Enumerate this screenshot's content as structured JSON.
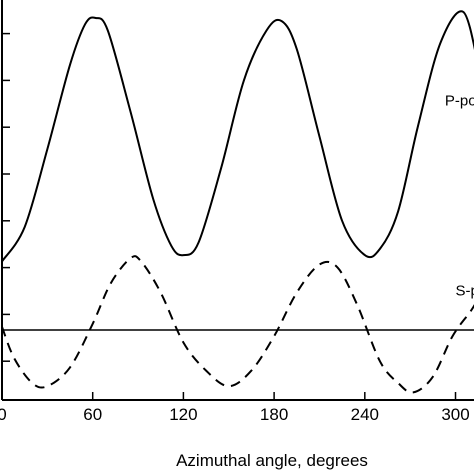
{
  "chart_data": {
    "type": "line",
    "xlabel": "Azimuthal angle, degrees",
    "ylabel": "",
    "title": "",
    "xlim": [
      0,
      315
    ],
    "ylim": [
      -0.25,
      1.05
    ],
    "xticks": [
      0,
      60,
      120,
      180,
      240,
      300
    ],
    "xtick_labels": [
      "0",
      "60",
      "120",
      "180",
      "240",
      "300"
    ],
    "ytick_values": [
      0.95,
      0.8,
      0.65,
      0.5,
      0.35,
      0.2,
      0.05,
      -0.1
    ],
    "grid": false,
    "legend": "none",
    "colors": {
      "line": "#000000",
      "axis": "#000000",
      "background": "#ffffff"
    },
    "baseline": {
      "y": 0.0,
      "style": "solid"
    },
    "series": [
      {
        "name": "P-pol",
        "style": "solid",
        "x": [
          0,
          15,
          30,
          45,
          55,
          62,
          70,
          85,
          100,
          112,
          120,
          130,
          145,
          160,
          175,
          185,
          195,
          210,
          225,
          240,
          250,
          262,
          275,
          290,
          305,
          315
        ],
        "values": [
          0.22,
          0.33,
          0.58,
          0.85,
          0.98,
          1.0,
          0.96,
          0.7,
          0.42,
          0.27,
          0.24,
          0.28,
          0.52,
          0.8,
          0.96,
          0.99,
          0.9,
          0.62,
          0.35,
          0.24,
          0.26,
          0.38,
          0.65,
          0.92,
          1.02,
          0.85
        ]
      },
      {
        "name": "S-pol",
        "style": "dashed",
        "x": [
          0,
          8,
          20,
          30,
          45,
          60,
          72,
          85,
          92,
          105,
          120,
          135,
          150,
          165,
          180,
          195,
          210,
          222,
          235,
          250,
          262,
          272,
          285,
          298,
          310,
          315
        ],
        "values": [
          0.01,
          -0.09,
          -0.17,
          -0.18,
          -0.12,
          0.02,
          0.15,
          0.23,
          0.22,
          0.12,
          -0.04,
          -0.13,
          -0.18,
          -0.13,
          -0.02,
          0.12,
          0.21,
          0.2,
          0.08,
          -0.1,
          -0.17,
          -0.2,
          -0.15,
          -0.02,
          0.06,
          0.1
        ]
      }
    ],
    "annotations": [
      {
        "text": "P-pol",
        "x": 293,
        "y": 0.72
      },
      {
        "text": "S-pol",
        "x": 300,
        "y": 0.11
      }
    ]
  }
}
